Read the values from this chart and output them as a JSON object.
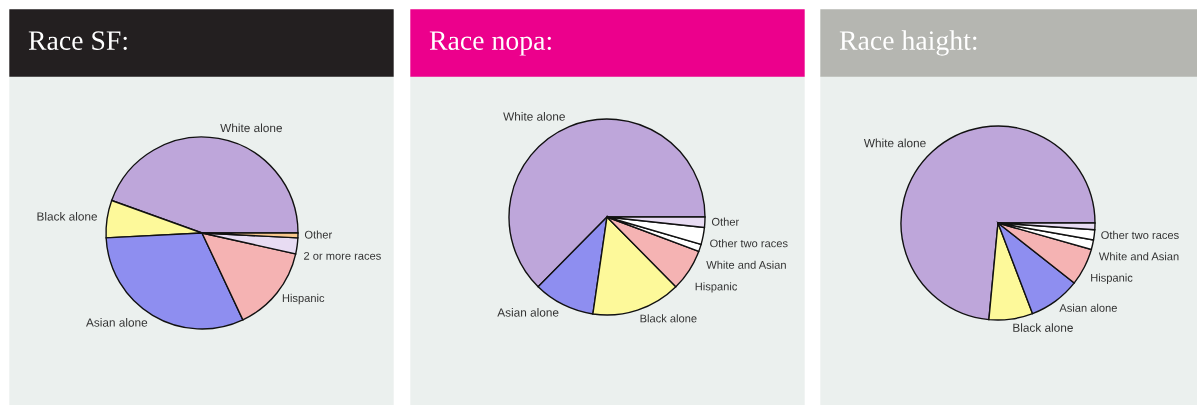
{
  "chart_data": [
    {
      "type": "pie",
      "title": "Race SF:",
      "categories": [
        "White alone",
        "Black alone",
        "Asian alone",
        "Hispanic",
        "2 or more races",
        "Other"
      ],
      "values": [
        44.5,
        6.3,
        31.2,
        14.5,
        2.7,
        0.8
      ],
      "colors": [
        "#bea6da",
        "#fdf99a",
        "#8e8ef0",
        "#f5b3b3",
        "#e8dcf3",
        "#f8c88d"
      ]
    },
    {
      "type": "pie",
      "title": "Race nopa:",
      "categories": [
        "White alone",
        "Asian alone",
        "Black alone",
        "Hispanic",
        "White and Asian",
        "Other two races",
        "Other"
      ],
      "values": [
        62.6,
        10.1,
        14.7,
        6.9,
        1.2,
        2.8,
        1.7
      ],
      "colors": [
        "#bea6da",
        "#8e8ef0",
        "#fdf99a",
        "#f5b3b3",
        "#ffffff",
        "#ffffff",
        "#e8dcf3"
      ]
    },
    {
      "type": "pie",
      "title": "Race haight:",
      "categories": [
        "White alone",
        "Black alone",
        "Asian alone",
        "Hispanic",
        "White and Asian",
        "Other two races",
        null
      ],
      "values": [
        73.5,
        7.3,
        8.6,
        6.2,
        1.6,
        1.7,
        1.1
      ],
      "colors": [
        "#bea6da",
        "#fdf99a",
        "#8e8ef0",
        "#f5b3b3",
        "#ffffff",
        "#ffffff",
        "#e8dcf3"
      ]
    }
  ]
}
